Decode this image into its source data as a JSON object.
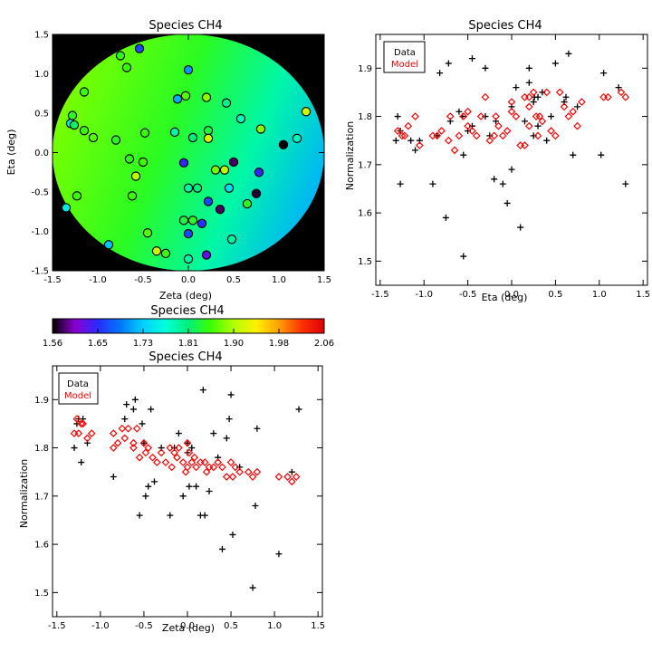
{
  "chart_data": [
    {
      "id": "map",
      "type": "scatter",
      "title": "Species CH4",
      "xlabel": "Zeta (deg)",
      "ylabel": "Eta (deg)",
      "xlim": [
        -1.5,
        1.5
      ],
      "ylim": [
        -1.5,
        1.5
      ],
      "xticks": [
        "-1.5",
        "-1.0",
        "-0.5",
        "0.0",
        "0.5",
        "1.0",
        "1.5"
      ],
      "yticks": [
        "-1.5",
        "-1.0",
        "-0.5",
        "0.0",
        "0.5",
        "1.0",
        "1.5"
      ],
      "background_disk_radius_deg": 1.5,
      "points": [
        {
          "zeta": -0.54,
          "eta": 1.32,
          "v": 1.66
        },
        {
          "zeta": -0.75,
          "eta": 1.23,
          "v": 1.84
        },
        {
          "zeta": -0.68,
          "eta": 1.08,
          "v": 1.85
        },
        {
          "zeta": 0.0,
          "eta": 1.05,
          "v": 1.7
        },
        {
          "zeta": -1.15,
          "eta": 0.77,
          "v": 1.85
        },
        {
          "zeta": -0.12,
          "eta": 0.68,
          "v": 1.71
        },
        {
          "zeta": -0.03,
          "eta": 0.72,
          "v": 1.86
        },
        {
          "zeta": 0.2,
          "eta": 0.7,
          "v": 1.88
        },
        {
          "zeta": 0.42,
          "eta": 0.63,
          "v": 1.8
        },
        {
          "zeta": -1.28,
          "eta": 0.47,
          "v": 1.84
        },
        {
          "zeta": -1.3,
          "eta": 0.37,
          "v": 1.75
        },
        {
          "zeta": -1.26,
          "eta": 0.35,
          "v": 1.82
        },
        {
          "zeta": -1.15,
          "eta": 0.28,
          "v": 1.85
        },
        {
          "zeta": -1.05,
          "eta": 0.19,
          "v": 1.86
        },
        {
          "zeta": -0.8,
          "eta": 0.16,
          "v": 1.84
        },
        {
          "zeta": -0.48,
          "eta": 0.25,
          "v": 1.85
        },
        {
          "zeta": -0.15,
          "eta": 0.26,
          "v": 1.79
        },
        {
          "zeta": 0.05,
          "eta": 0.19,
          "v": 1.81
        },
        {
          "zeta": 0.22,
          "eta": 0.28,
          "v": 1.83
        },
        {
          "zeta": 0.22,
          "eta": 0.18,
          "v": 1.91
        },
        {
          "zeta": 0.58,
          "eta": 0.43,
          "v": 1.78
        },
        {
          "zeta": 0.8,
          "eta": 0.3,
          "v": 1.88
        },
        {
          "zeta": 1.2,
          "eta": 0.18,
          "v": 1.78
        },
        {
          "zeta": 1.3,
          "eta": 0.52,
          "v": 1.91
        },
        {
          "zeta": 1.05,
          "eta": 0.1,
          "v": 1.56
        },
        {
          "zeta": -0.65,
          "eta": -0.08,
          "v": 1.84
        },
        {
          "zeta": -0.5,
          "eta": -0.12,
          "v": 1.85
        },
        {
          "zeta": -0.58,
          "eta": -0.3,
          "v": 1.9
        },
        {
          "zeta": -0.05,
          "eta": -0.13,
          "v": 1.64
        },
        {
          "zeta": 0.3,
          "eta": -0.22,
          "v": 1.87
        },
        {
          "zeta": 0.4,
          "eta": -0.22,
          "v": 1.9
        },
        {
          "zeta": 0.5,
          "eta": -0.12,
          "v": 1.58
        },
        {
          "zeta": 0.78,
          "eta": -0.25,
          "v": 1.64
        },
        {
          "zeta": -0.62,
          "eta": -0.55,
          "v": 1.85
        },
        {
          "zeta": 0.0,
          "eta": -0.45,
          "v": 1.79
        },
        {
          "zeta": 0.1,
          "eta": -0.45,
          "v": 1.81
        },
        {
          "zeta": 0.45,
          "eta": -0.45,
          "v": 1.74
        },
        {
          "zeta": 0.75,
          "eta": -0.52,
          "v": 1.57
        },
        {
          "zeta": -1.23,
          "eta": -0.55,
          "v": 1.85
        },
        {
          "zeta": 0.22,
          "eta": -0.62,
          "v": 1.66
        },
        {
          "zeta": 0.35,
          "eta": -0.72,
          "v": 1.58
        },
        {
          "zeta": -1.35,
          "eta": -0.7,
          "v": 1.75
        },
        {
          "zeta": 0.65,
          "eta": -0.65,
          "v": 1.84
        },
        {
          "zeta": -0.05,
          "eta": -0.86,
          "v": 1.83
        },
        {
          "zeta": 0.05,
          "eta": -0.86,
          "v": 1.84
        },
        {
          "zeta": 0.15,
          "eta": -0.9,
          "v": 1.65
        },
        {
          "zeta": -0.45,
          "eta": -1.02,
          "v": 1.86
        },
        {
          "zeta": 0.0,
          "eta": -1.03,
          "v": 1.66
        },
        {
          "zeta": 0.48,
          "eta": -1.1,
          "v": 1.79
        },
        {
          "zeta": -0.88,
          "eta": -1.17,
          "v": 1.72
        },
        {
          "zeta": -0.35,
          "eta": -1.25,
          "v": 1.91
        },
        {
          "zeta": -0.25,
          "eta": -1.28,
          "v": 1.85
        },
        {
          "zeta": 0.2,
          "eta": -1.3,
          "v": 1.62
        },
        {
          "zeta": 0.0,
          "eta": -1.35,
          "v": 1.79
        }
      ]
    },
    {
      "id": "colorbar",
      "type": "heatmap",
      "title": "Species CH4",
      "range": [
        1.56,
        2.06
      ],
      "tick_labels": [
        "1.56",
        "1.65",
        "1.73",
        "1.81",
        "1.90",
        "1.98",
        "2.06"
      ],
      "colormap": [
        "#000000",
        "#8b00d0",
        "#2a2aff",
        "#0078ff",
        "#00d0ff",
        "#00ffd8",
        "#00f07a",
        "#3cff00",
        "#b0ff00",
        "#fff000",
        "#ffa000",
        "#ff3200",
        "#e00000"
      ]
    },
    {
      "id": "norm-eta",
      "type": "scatter",
      "title": "Species CH4",
      "xlabel": "Eta (deg)",
      "ylabel": "Normalization",
      "xlim": [
        -1.55,
        1.55
      ],
      "ylim": [
        1.45,
        1.97
      ],
      "xticks": [
        "-1.5",
        "-1.0",
        "-0.5",
        "0.0",
        "0.5",
        "1.0",
        "1.5"
      ],
      "yticks": [
        "1.5",
        "1.6",
        "1.7",
        "1.8",
        "1.9"
      ],
      "legend": {
        "data": "Data",
        "model": "Model",
        "placement": "top-left"
      },
      "series": [
        {
          "name": "Data",
          "marker": "+",
          "color": "#000000",
          "x": [
            -1.27,
            -1.3,
            -1.32,
            -1.27,
            -1.05,
            -1.1,
            -1.15,
            -0.9,
            -0.85,
            -0.75,
            -0.7,
            -0.6,
            -0.55,
            -0.55,
            -0.5,
            -0.45,
            -0.45,
            -0.3,
            -0.25,
            -0.2,
            -0.1,
            -0.05,
            0.0,
            0.05,
            0.1,
            0.15,
            0.2,
            0.2,
            0.25,
            0.25,
            0.3,
            0.3,
            0.35,
            0.4,
            0.45,
            0.5,
            0.6,
            0.7,
            0.65,
            0.75,
            1.02,
            1.05,
            1.3,
            1.22,
            -0.82,
            -0.72,
            -0.3,
            0.62,
            -0.56,
            0.0,
            -0.18,
            0.26
          ],
          "y": [
            1.77,
            1.8,
            1.75,
            1.66,
            1.75,
            1.73,
            1.75,
            1.66,
            1.76,
            1.59,
            1.79,
            1.81,
            1.72,
            1.51,
            1.77,
            1.78,
            1.92,
            1.9,
            1.76,
            1.67,
            1.66,
            1.62,
            1.69,
            1.86,
            1.57,
            1.79,
            1.9,
            1.87,
            1.83,
            1.76,
            1.84,
            1.78,
            1.85,
            1.75,
            1.8,
            1.91,
            1.83,
            1.72,
            1.93,
            1.82,
            1.72,
            1.89,
            1.66,
            1.86,
            1.89,
            1.91,
            1.8,
            1.84,
            1.8,
            1.82,
            1.79,
            1.84
          ]
        },
        {
          "name": "Model",
          "marker": "diamond",
          "color": "#ff0000",
          "x": [
            -1.3,
            -1.25,
            -1.22,
            -1.18,
            -1.1,
            -1.05,
            -0.9,
            -0.85,
            -0.8,
            -0.72,
            -0.7,
            -0.65,
            -0.6,
            -0.55,
            -0.5,
            -0.5,
            -0.45,
            -0.4,
            -0.35,
            -0.3,
            -0.25,
            -0.2,
            -0.18,
            -0.15,
            -0.1,
            -0.05,
            0.0,
            0.05,
            0.1,
            0.15,
            0.15,
            0.2,
            0.2,
            0.25,
            0.28,
            0.3,
            0.32,
            0.35,
            0.4,
            0.45,
            0.5,
            0.55,
            0.6,
            0.65,
            0.7,
            0.75,
            0.8,
            1.05,
            1.1,
            1.25,
            1.3,
            0.0,
            0.2
          ],
          "y": [
            1.77,
            1.76,
            1.76,
            1.78,
            1.8,
            1.74,
            1.76,
            1.76,
            1.77,
            1.75,
            1.8,
            1.73,
            1.76,
            1.8,
            1.81,
            1.78,
            1.77,
            1.76,
            1.8,
            1.84,
            1.75,
            1.76,
            1.8,
            1.78,
            1.76,
            1.77,
            1.81,
            1.8,
            1.74,
            1.74,
            1.84,
            1.82,
            1.78,
            1.85,
            1.8,
            1.76,
            1.8,
            1.79,
            1.85,
            1.77,
            1.76,
            1.85,
            1.82,
            1.8,
            1.81,
            1.78,
            1.83,
            1.84,
            1.84,
            1.85,
            1.84,
            1.83,
            1.84
          ]
        }
      ]
    },
    {
      "id": "norm-zeta",
      "type": "scatter",
      "title": "Species CH4",
      "xlabel": "Zeta (deg)",
      "ylabel": "Normalization",
      "xlim": [
        -1.55,
        1.55
      ],
      "ylim": [
        1.45,
        1.97
      ],
      "xticks": [
        "-1.5",
        "-1.0",
        "-0.5",
        "0.0",
        "0.5",
        "1.0",
        "1.5"
      ],
      "yticks": [
        "1.5",
        "1.6",
        "1.7",
        "1.8",
        "1.9"
      ],
      "legend": {
        "data": "Data",
        "model": "Model",
        "placement": "top-left"
      },
      "series": [
        {
          "name": "Data",
          "marker": "+",
          "color": "#000000",
          "x": [
            -1.3,
            -1.27,
            -1.22,
            -1.2,
            -1.25,
            -1.15,
            -0.85,
            -0.72,
            -0.7,
            -0.6,
            -0.55,
            -0.52,
            -0.48,
            -0.45,
            -0.42,
            -0.38,
            -0.3,
            -0.2,
            -0.15,
            -0.1,
            -0.05,
            0.0,
            0.0,
            0.02,
            0.05,
            0.1,
            0.15,
            0.18,
            0.2,
            0.25,
            0.3,
            0.35,
            0.4,
            0.45,
            0.5,
            0.52,
            0.6,
            0.75,
            0.78,
            0.8,
            1.05,
            1.2,
            1.28,
            -0.5,
            0.48,
            -0.62
          ],
          "y": [
            1.8,
            1.85,
            1.77,
            1.86,
            1.86,
            1.81,
            1.74,
            1.86,
            1.89,
            1.9,
            1.66,
            1.85,
            1.7,
            1.72,
            1.88,
            1.73,
            1.8,
            1.66,
            1.8,
            1.83,
            1.7,
            1.79,
            1.81,
            1.72,
            1.8,
            1.72,
            1.66,
            1.92,
            1.66,
            1.71,
            1.83,
            1.78,
            1.59,
            1.82,
            1.91,
            1.62,
            1.76,
            1.51,
            1.68,
            1.84,
            1.58,
            1.75,
            1.88,
            1.81,
            1.86,
            1.88
          ]
        },
        {
          "name": "Model",
          "marker": "diamond",
          "color": "#ff0000",
          "x": [
            -1.3,
            -1.27,
            -1.25,
            -1.22,
            -1.2,
            -1.15,
            -1.1,
            -0.85,
            -0.8,
            -0.75,
            -0.72,
            -0.68,
            -0.62,
            -0.58,
            -0.55,
            -0.5,
            -0.48,
            -0.45,
            -0.4,
            -0.35,
            -0.3,
            -0.25,
            -0.2,
            -0.18,
            -0.15,
            -0.12,
            -0.1,
            -0.05,
            -0.02,
            0.0,
            0.02,
            0.05,
            0.08,
            0.1,
            0.15,
            0.2,
            0.22,
            0.25,
            0.3,
            0.35,
            0.4,
            0.45,
            0.5,
            0.52,
            0.55,
            0.6,
            0.7,
            0.75,
            0.8,
            1.05,
            1.15,
            1.2,
            1.25,
            -0.85,
            -0.62,
            0.0
          ],
          "y": [
            1.83,
            1.86,
            1.83,
            1.85,
            1.85,
            1.82,
            1.83,
            1.83,
            1.81,
            1.84,
            1.82,
            1.84,
            1.81,
            1.84,
            1.78,
            1.81,
            1.79,
            1.8,
            1.78,
            1.77,
            1.79,
            1.77,
            1.8,
            1.76,
            1.79,
            1.78,
            1.8,
            1.77,
            1.75,
            1.76,
            1.79,
            1.77,
            1.78,
            1.76,
            1.77,
            1.77,
            1.75,
            1.76,
            1.76,
            1.77,
            1.76,
            1.74,
            1.77,
            1.74,
            1.76,
            1.75,
            1.75,
            1.74,
            1.75,
            1.74,
            1.74,
            1.73,
            1.74,
            1.8,
            1.8,
            1.81
          ]
        }
      ]
    }
  ]
}
